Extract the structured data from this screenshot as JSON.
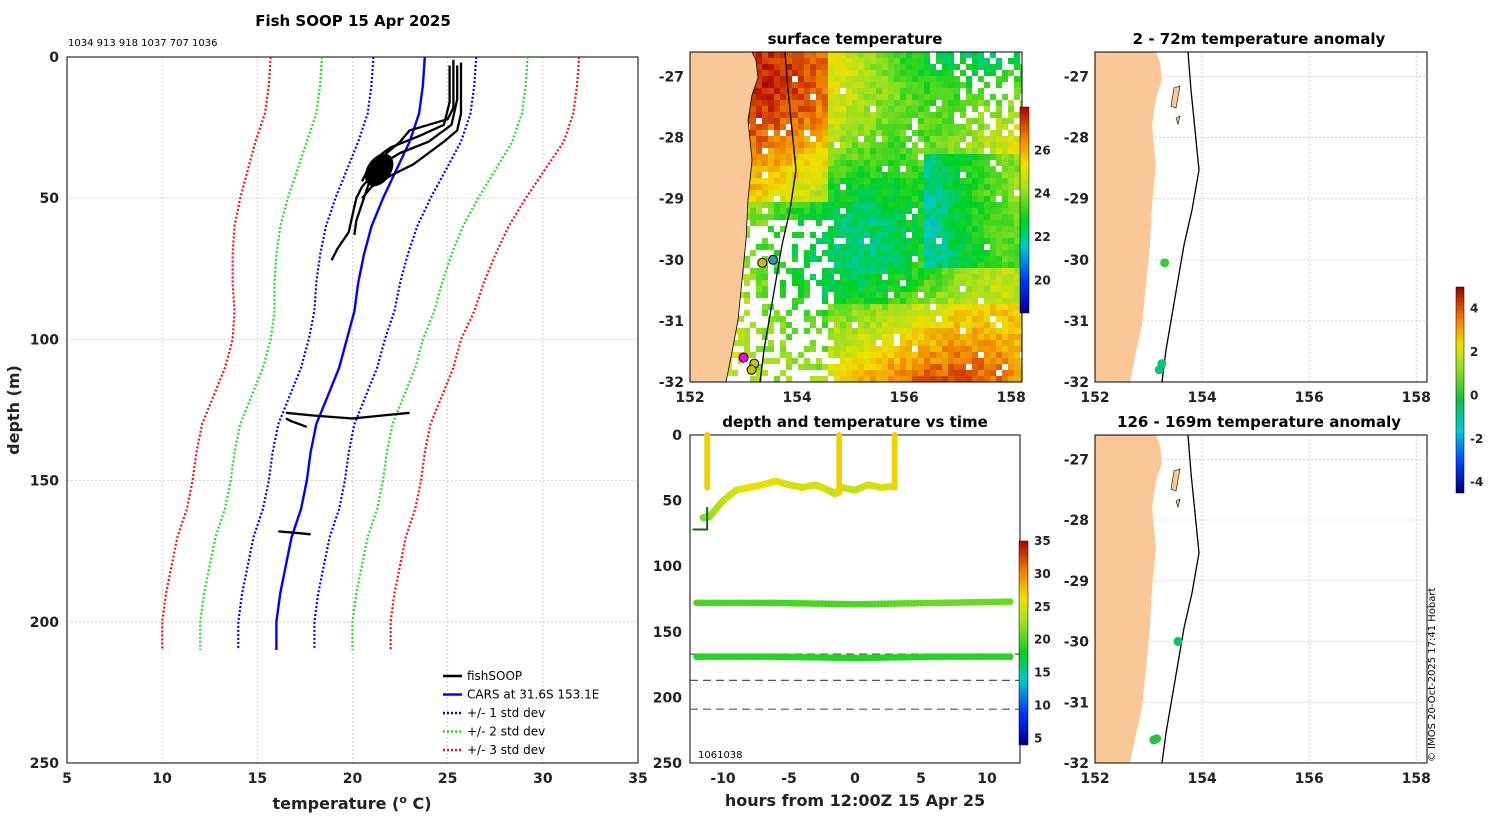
{
  "colors": {
    "land": "#f9c896",
    "cars": "#0000ff",
    "std1": "#0000dd",
    "std2": "#22dd22",
    "std3": "#ee1111",
    "fish": "#000000"
  },
  "profile": {
    "title": "Fish SOOP 15 Apr 2025",
    "ids": "1034 913 918 1037 707 1036",
    "xlabel": "temperature (",
    "xlabel_sup": "o",
    "xlabel_end": " C)",
    "ylabel": "depth (m)",
    "legend": [
      "fishSOOP",
      "CARS at 31.6S 153.1E",
      "+/- 1 std dev",
      "+/- 2 std dev",
      "+/- 3 std dev"
    ],
    "chart_data": {
      "type": "line",
      "xlim": [
        5,
        35
      ],
      "ylim": [
        0,
        250
      ],
      "xticks": [
        5,
        10,
        15,
        20,
        25,
        30,
        35
      ],
      "yticks": [
        0,
        50,
        100,
        150,
        200,
        250
      ],
      "cars": {
        "depth": [
          0,
          10,
          20,
          30,
          40,
          50,
          60,
          70,
          80,
          90,
          100,
          110,
          120,
          130,
          140,
          150,
          160,
          170,
          180,
          190,
          200,
          210
        ],
        "temp": [
          23.8,
          23.7,
          23.5,
          23.0,
          22.3,
          21.6,
          21.0,
          20.6,
          20.3,
          20.1,
          19.7,
          19.3,
          18.7,
          18.1,
          17.8,
          17.6,
          17.3,
          16.8,
          16.5,
          16.2,
          16.0,
          16.0
        ],
        "std": [
          2.7,
          2.7,
          2.7,
          2.7,
          2.6,
          2.5,
          2.4,
          2.3,
          2.2,
          2.1,
          2.0,
          2.0,
          2.0,
          2.0,
          2.0,
          2.0,
          2.0,
          2.0,
          2.0,
          2.0,
          2.0,
          2.0
        ]
      },
      "fish_segments": [
        {
          "depth": [
            1,
            10,
            18,
            22,
            24,
            26,
            30,
            34,
            38,
            42,
            46,
            50,
            56,
            62,
            68,
            72
          ],
          "temp": [
            25.3,
            25.3,
            25.3,
            25.0,
            24.0,
            23.0,
            22.5,
            21.8,
            21.5,
            21.0,
            20.5,
            20.2,
            20.0,
            19.8,
            19.2,
            18.9
          ]
        },
        {
          "depth": [
            2,
            10,
            20,
            26,
            30,
            34,
            38,
            42,
            46,
            50
          ],
          "temp": [
            25.7,
            25.7,
            25.7,
            25.5,
            24.8,
            24.0,
            23.2,
            22.0,
            21.0,
            20.5
          ]
        },
        {
          "depth": [
            3,
            15,
            24,
            30,
            34,
            38,
            42,
            46,
            52,
            58,
            63
          ],
          "temp": [
            25.5,
            25.5,
            25.2,
            24.0,
            22.5,
            21.5,
            21.0,
            20.8,
            20.5,
            20.2,
            20.1
          ]
        },
        {
          "depth": [
            3,
            16,
            24,
            28,
            32,
            36,
            40,
            44
          ],
          "temp": [
            25.1,
            25.1,
            24.8,
            23.5,
            22.0,
            21.2,
            20.8,
            20.5
          ]
        },
        {
          "depth": [
            126,
            127,
            128,
            127,
            126
          ],
          "temp": [
            16.5,
            18.0,
            20.0,
            21.5,
            23.0
          ]
        },
        {
          "depth": [
            128,
            129,
            130,
            131
          ],
          "temp": [
            16.5,
            16.8,
            17.2,
            17.6
          ]
        },
        {
          "depth": [
            168,
            168.5,
            169
          ],
          "temp": [
            16.1,
            17.0,
            17.8
          ]
        }
      ]
    }
  },
  "sst": {
    "title": "surface temperature",
    "xticks": [
      "152",
      "154",
      "156",
      "158"
    ],
    "yticks": [
      "-27",
      "-28",
      "-29",
      "-30",
      "-31",
      "-32"
    ],
    "cbar_ticks": [
      "26",
      "24",
      "22",
      "20"
    ],
    "chart_data": {
      "type": "heatmap",
      "xlim": [
        152,
        158.2
      ],
      "ylim": [
        -32,
        -26.6
      ],
      "clim": [
        18.5,
        28
      ],
      "title": "surface temperature"
    }
  },
  "dtime": {
    "title": "depth and temperature vs time",
    "xlabel": "hours from 12:00Z 15 Apr 25",
    "xticks": [
      "-10",
      "-5",
      "0",
      "5",
      "10"
    ],
    "yticks": [
      "0",
      "50",
      "100",
      "150",
      "200",
      "250"
    ],
    "cbar_ticks": [
      "35",
      "30",
      "25",
      "20",
      "15",
      "10",
      "5"
    ],
    "overlap_label": "1061038",
    "chart_data": {
      "type": "scatter",
      "xlim": [
        -12.5,
        12.5
      ],
      "ylim": [
        0,
        250
      ],
      "clim": [
        4,
        35
      ],
      "dashed_depths": [
        167,
        187,
        209
      ],
      "series": [
        {
          "name": "shallow",
          "hours": [
            -11.5,
            -11,
            -10,
            -9,
            -8,
            -7,
            -6,
            -5,
            -4,
            -3,
            -2,
            -1.5,
            -1,
            0,
            1,
            2,
            3
          ],
          "depth": [
            63,
            62,
            50,
            42,
            40,
            38,
            35,
            38,
            40,
            38,
            42,
            45,
            40,
            42,
            38,
            40,
            39
          ],
          "temp": [
            21,
            22,
            24,
            25,
            26,
            26,
            26,
            25,
            25,
            25,
            25,
            24,
            25,
            24,
            25,
            25,
            25
          ]
        },
        {
          "name": "deep1",
          "hours": [
            -12,
            -6,
            0,
            6,
            12
          ],
          "depth": [
            128,
            128,
            129,
            128,
            127
          ],
          "temp": [
            20,
            20,
            20,
            21,
            21
          ]
        },
        {
          "name": "deep2",
          "hours": [
            -12,
            -6,
            0,
            6,
            12
          ],
          "depth": [
            169,
            169,
            170,
            169,
            169
          ],
          "temp": [
            19,
            19,
            19,
            19,
            19
          ]
        }
      ]
    }
  },
  "anom_top": {
    "title": "2 - 72m temperature anomaly",
    "xticks": [
      "152",
      "154",
      "156",
      "158"
    ],
    "yticks": [
      "-27",
      "-28",
      "-29",
      "-30",
      "-31",
      "-32"
    ],
    "chart_data": {
      "type": "scatter",
      "points": [
        {
          "lon": 153.3,
          "lat": -30.05,
          "anom": 0.2
        },
        {
          "lon": 153.25,
          "lat": -31.7,
          "anom": -0.8
        },
        {
          "lon": 153.2,
          "lat": -31.8,
          "anom": -0.8
        }
      ]
    }
  },
  "anom_bottom": {
    "title": "126 - 169m temperature anomaly",
    "xticks": [
      "152",
      "154",
      "156",
      "158"
    ],
    "yticks": [
      "-27",
      "-28",
      "-29",
      "-30",
      "-31",
      "-32"
    ],
    "chart_data": {
      "type": "scatter",
      "points": [
        {
          "lon": 153.55,
          "lat": -30.0,
          "anom": -0.5
        },
        {
          "lon": 153.15,
          "lat": -31.6,
          "anom": 0.0
        },
        {
          "lon": 153.1,
          "lat": -31.62,
          "anom": 0.0
        }
      ]
    }
  },
  "anom_cbar": {
    "ticks": [
      "4",
      "2",
      "0",
      "-2",
      "-4"
    ],
    "clim": [
      -4.5,
      5
    ]
  },
  "credit": "© IMOS 20-Oct-2025 17:41 Hobart"
}
